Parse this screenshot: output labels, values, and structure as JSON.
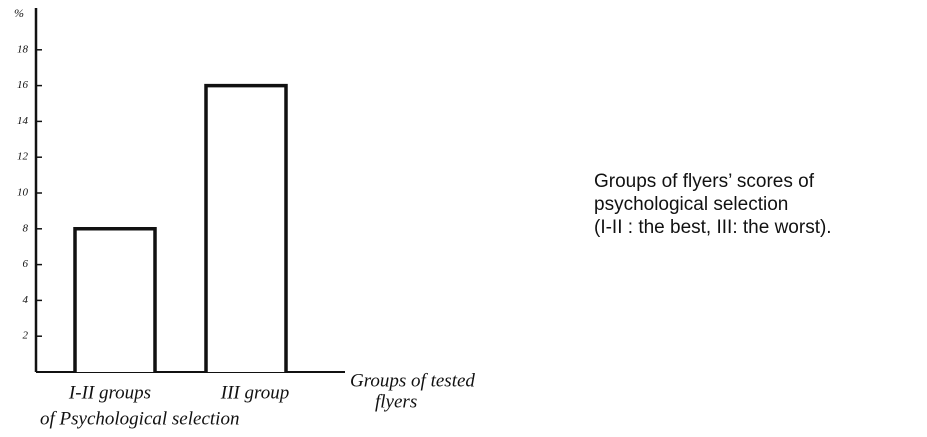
{
  "chart_data": {
    "type": "bar",
    "ylabel": "%",
    "categories": [
      "I-II groups",
      "III group"
    ],
    "category_note": "of Psychological selection",
    "xlabel": [
      "Groups of tested",
      "flyers"
    ],
    "values": [
      8,
      16
    ],
    "color": "#ffffff",
    "ylim": [
      0,
      20
    ],
    "yticks": [
      2,
      4,
      6,
      8,
      10,
      12,
      14,
      16,
      18
    ],
    "grid": false,
    "caption": [
      "Groups of flyers’ scores of",
      "psychological selection",
      "(I-II : the best, III: the worst)."
    ]
  }
}
